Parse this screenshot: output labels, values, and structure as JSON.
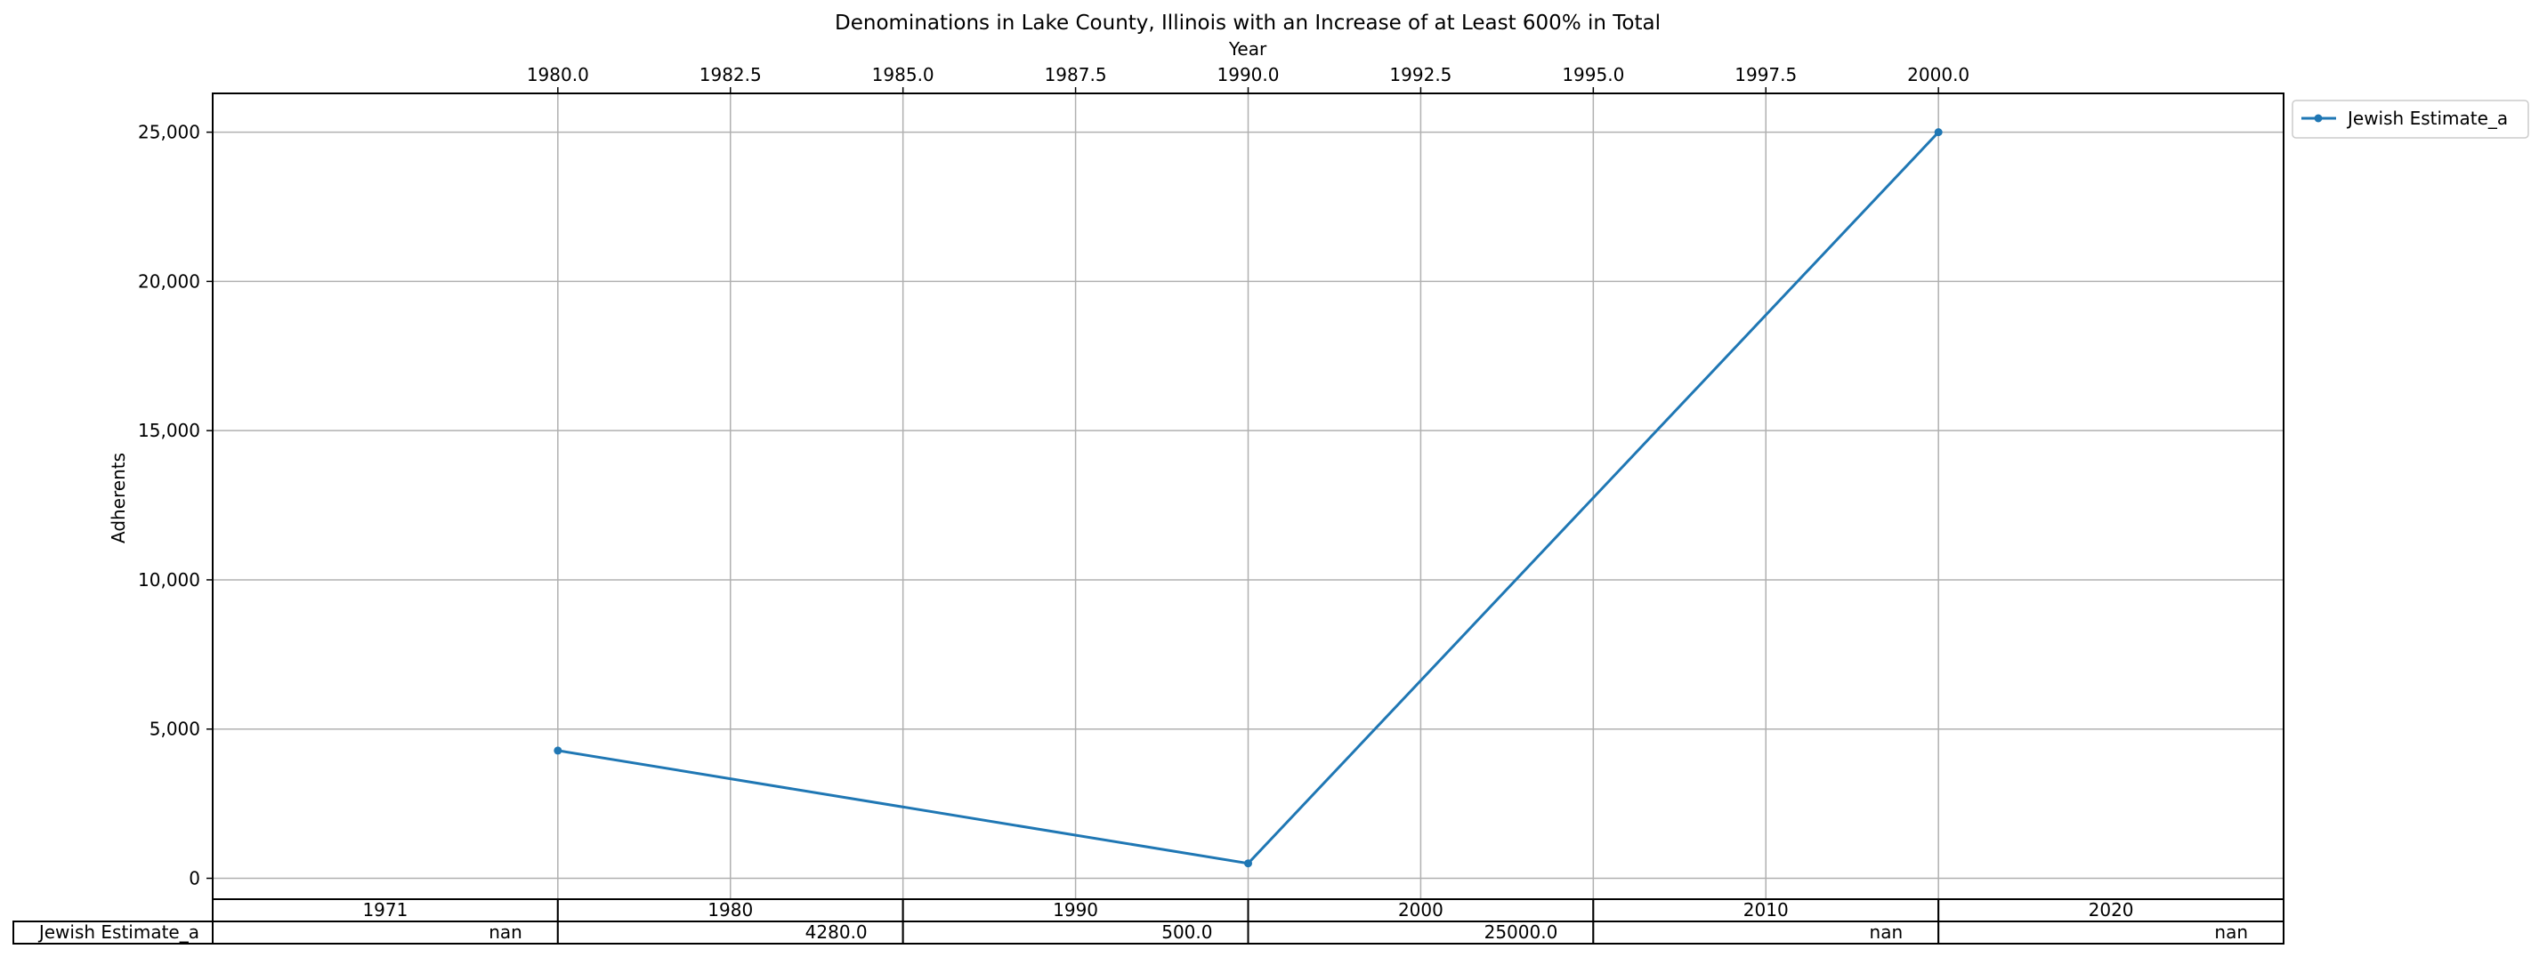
{
  "chart_data": {
    "type": "line",
    "title": "Denominations in Lake County, Illinois with an Increase of at Least 600% in Total",
    "xlabel": "Year",
    "ylabel": "Adherents",
    "xlim": [
      1975.0,
      2005.0
    ],
    "ylim": [
      -700,
      26300
    ],
    "x_ticks": [
      1980.0,
      1982.5,
      1985.0,
      1987.5,
      1990.0,
      1992.5,
      1995.0,
      1997.5,
      2000.0
    ],
    "x_tick_labels": [
      "1980.0",
      "1982.5",
      "1985.0",
      "1987.5",
      "1990.0",
      "1992.5",
      "1995.0",
      "1997.5",
      "2000.0"
    ],
    "y_ticks": [
      0,
      5000,
      10000,
      15000,
      20000,
      25000
    ],
    "y_tick_labels": [
      "0",
      "5,000",
      "10,000",
      "15,000",
      "20,000",
      "25,000"
    ],
    "grid": true,
    "legend_position": "outside-top-right",
    "series": [
      {
        "name": "Jewish Estimate_a",
        "color": "#1f77b4",
        "x": [
          1980,
          1990,
          2000
        ],
        "values": [
          4280,
          500,
          25000
        ]
      }
    ],
    "table": {
      "columns": [
        "1971",
        "1980",
        "1990",
        "2000",
        "2010",
        "2020"
      ],
      "rows": [
        {
          "label": "Jewish Estimate_a",
          "cells": [
            "nan",
            "4280.0",
            "500.0",
            "25000.0",
            "nan",
            "nan"
          ]
        }
      ]
    }
  }
}
